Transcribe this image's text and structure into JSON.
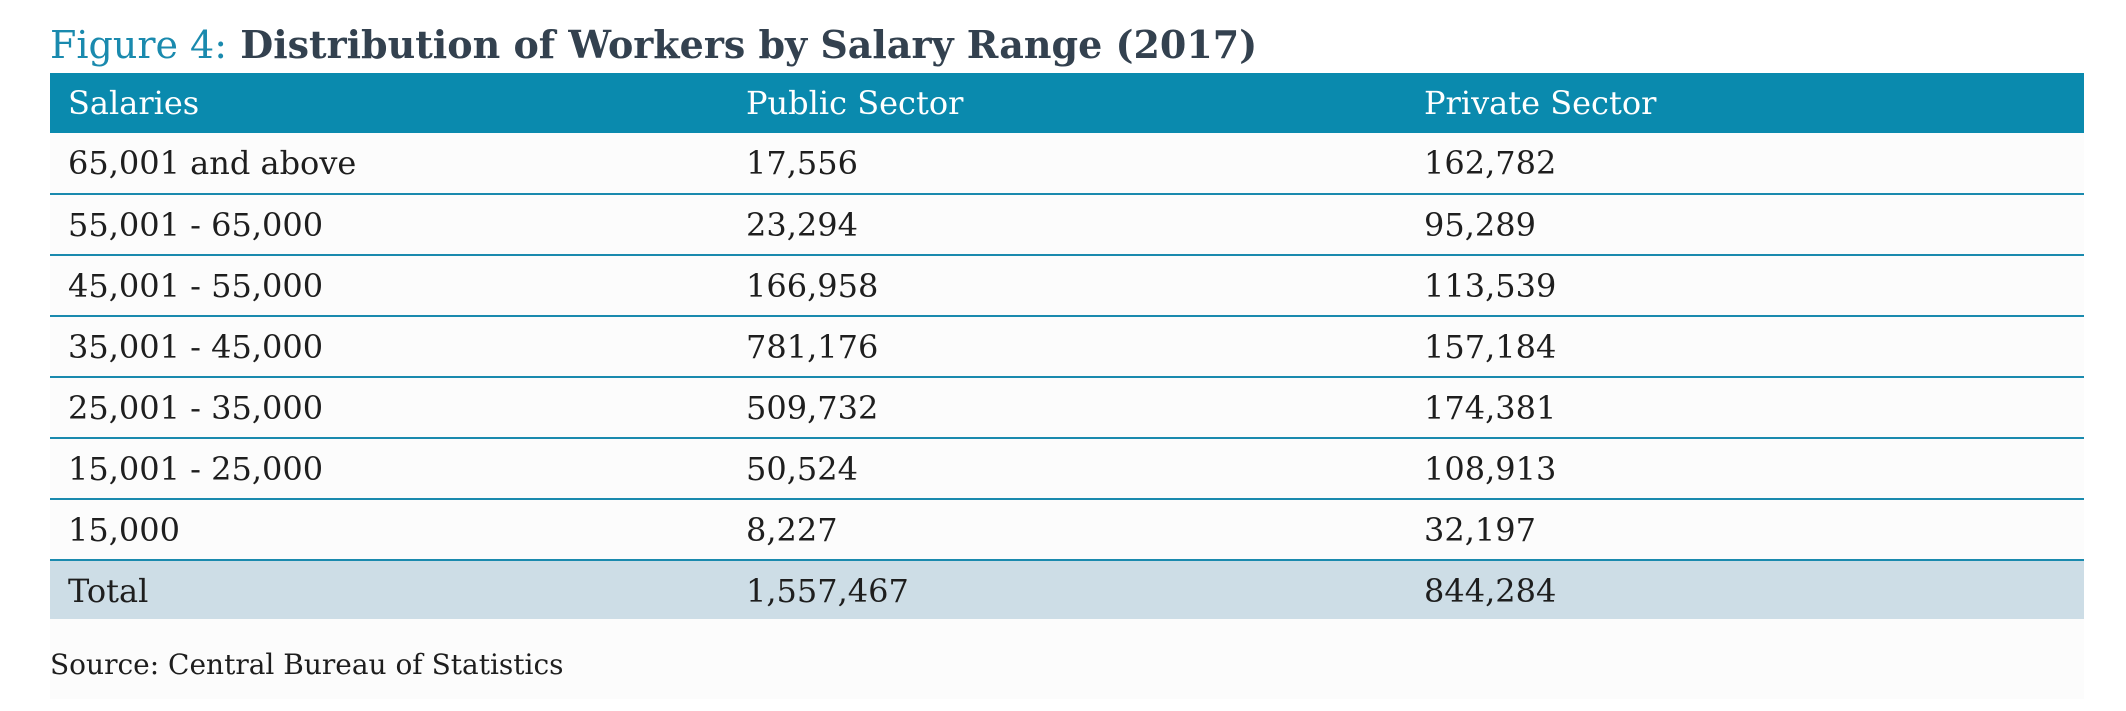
{
  "figure": {
    "label": "Figure 4:",
    "title": "Distribution of Workers by Salary Range (2017)"
  },
  "table": {
    "headers": [
      "Salaries",
      "Public Sector",
      "Private Sector"
    ],
    "rows": [
      [
        "65,001 and above",
        "17,556",
        "162,782"
      ],
      [
        "55,001 - 65,000",
        "23,294",
        "95,289"
      ],
      [
        "45,001 - 55,000",
        "166,958",
        "113,539"
      ],
      [
        "35,001 - 45,000",
        "781,176",
        "157,184"
      ],
      [
        "25,001 - 35,000",
        "509,732",
        "174,381"
      ],
      [
        "15,001 - 25,000",
        "50,524",
        "108,913"
      ],
      [
        "15,000",
        "8,227",
        "32,197"
      ]
    ],
    "total": [
      "Total",
      "1,557,467",
      "844,284"
    ]
  },
  "source": "Source: Central Bureau of Statistics",
  "colors": {
    "header_bg": "#0a8aae",
    "title_accent": "#1a8aae",
    "total_bg": "#cddde6"
  }
}
